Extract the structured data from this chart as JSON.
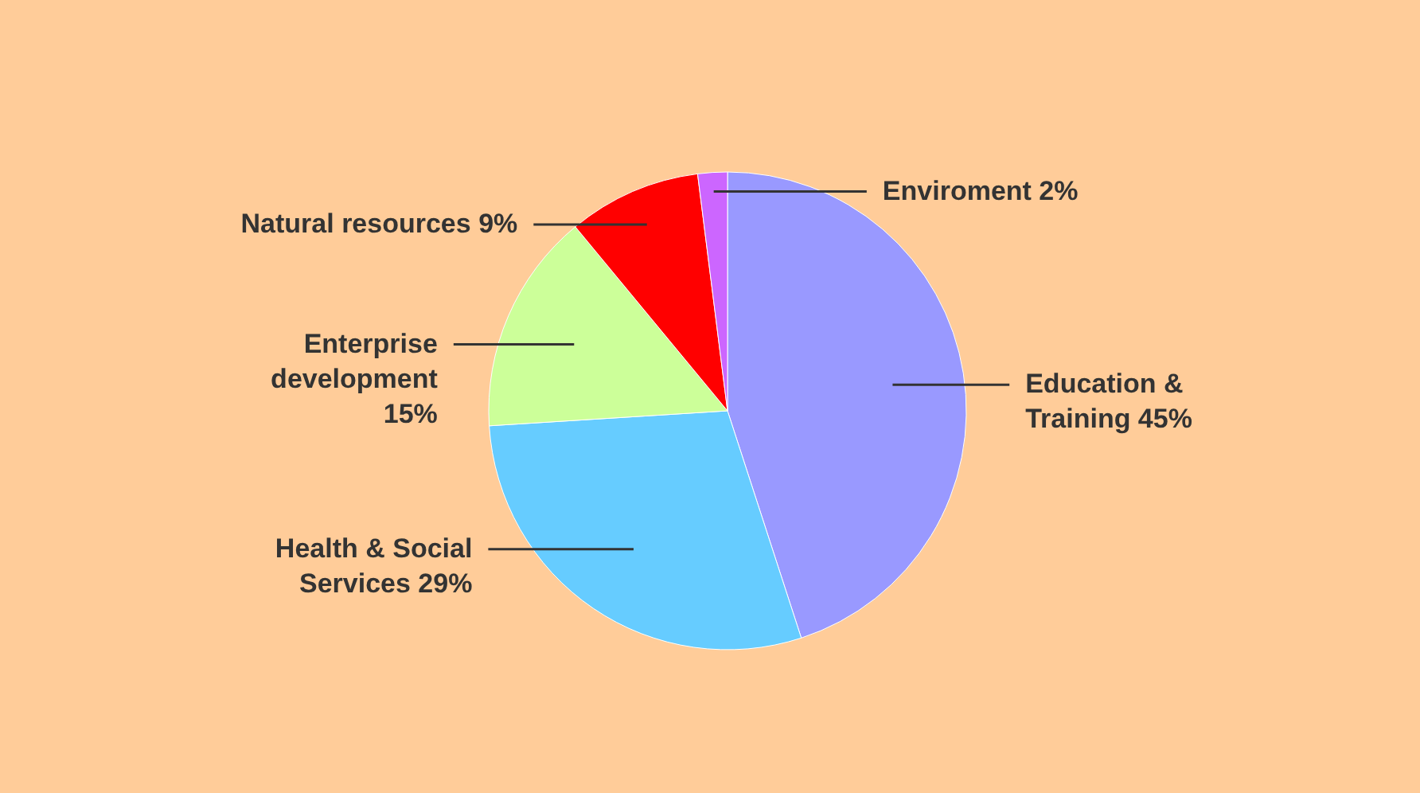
{
  "chart_data": {
    "type": "pie",
    "categories": [
      "Education & Training",
      "Health & Social Services",
      "Enterprise development",
      "Natural resources",
      "Enviroment"
    ],
    "values": [
      45,
      29,
      15,
      9,
      2
    ],
    "colors": [
      "#9999ff",
      "#66ccff",
      "#ccff99",
      "#ff0000",
      "#cc66ff"
    ],
    "value_labels": [
      "45%",
      "29%",
      "15%",
      "9%",
      "2%"
    ]
  }
}
